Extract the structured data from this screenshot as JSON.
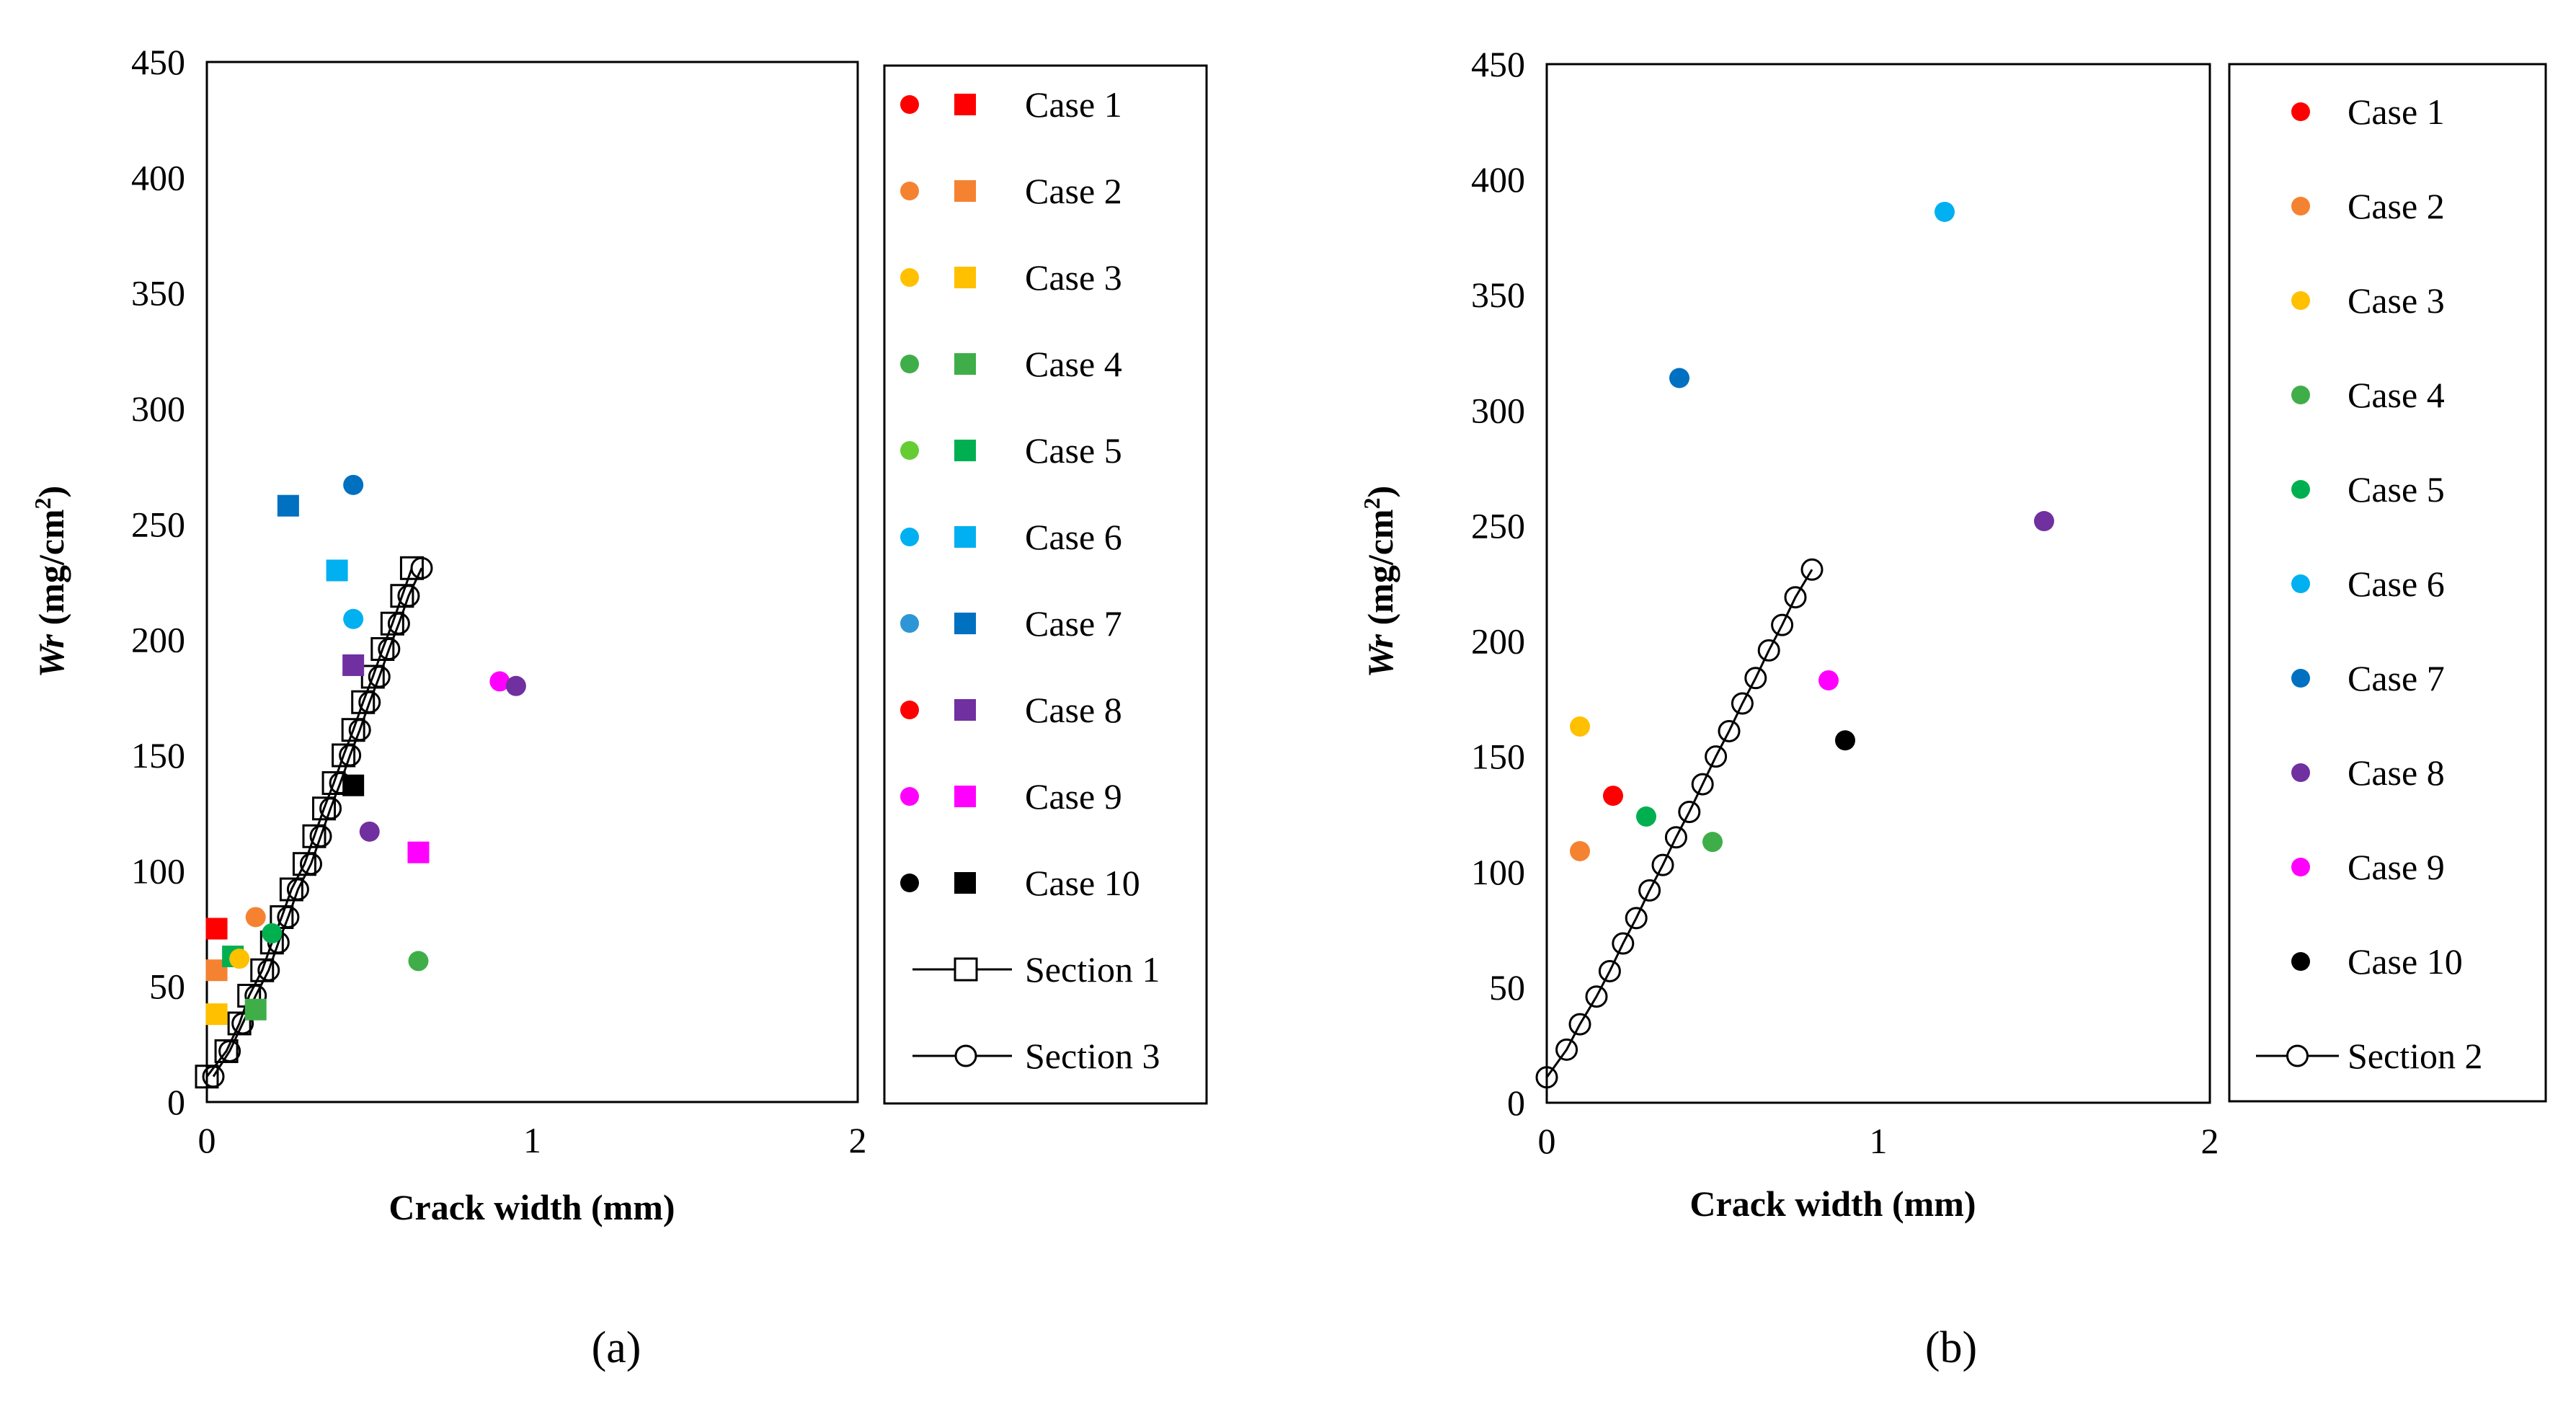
{
  "colors": {
    "case1": "#ff0000",
    "case2": "#f58231",
    "case3": "#ffc000",
    "case4": "#3fae49",
    "case5": "#00b050",
    "case6": "#00b0f0",
    "case7": "#0070c0",
    "case8": "#7030a0",
    "case9": "#ff00ff",
    "case10": "#000000",
    "circle4_left": "#66cc33",
    "circle7_left": "#2e96d6",
    "circle8_left": "#ff0000",
    "axis": "#000000",
    "hollow": "#ffffff"
  },
  "chart_data": [
    {
      "type": "scatter",
      "panel_label": "(a)",
      "xlabel": "Crack width (mm)",
      "ylabel_main": "Wr",
      "ylabel_unit": " (mg/cm",
      "ylabel_sup": "2",
      "ylabel_close": ")",
      "xlim": [
        0,
        2
      ],
      "ylim": [
        0,
        450
      ],
      "xticks": [
        "0",
        "1",
        "2"
      ],
      "yticks": [
        "0",
        "50",
        "100",
        "150",
        "200",
        "250",
        "300",
        "350",
        "400",
        "450"
      ],
      "legend": [
        {
          "label": "Case 1",
          "circle_color": "#ff0000",
          "square_color": "#ff0000"
        },
        {
          "label": "Case 2",
          "circle_color": "#f58231",
          "square_color": "#f58231"
        },
        {
          "label": "Case 3",
          "circle_color": "#ffc000",
          "square_color": "#ffc000"
        },
        {
          "label": "Case 4",
          "circle_color": "#3fae49",
          "square_color": "#3fae49"
        },
        {
          "label": "Case 5",
          "circle_color": "#66cc33",
          "square_color": "#00b050"
        },
        {
          "label": "Case 6",
          "circle_color": "#00b0f0",
          "square_color": "#00b0f0"
        },
        {
          "label": "Case 7",
          "circle_color": "#2e96d6",
          "square_color": "#0070c0"
        },
        {
          "label": "Case 8",
          "circle_color": "#ff0000",
          "square_color": "#7030a0"
        },
        {
          "label": "Case 9",
          "circle_color": "#ff00ff",
          "square_color": "#ff00ff"
        },
        {
          "label": "Case 10",
          "circle_color": "#000000",
          "square_color": "#000000"
        },
        {
          "label": "Section 1",
          "marker": "square-open-line"
        },
        {
          "label": "Section 3",
          "marker": "circle-open-line"
        }
      ],
      "section_1": {
        "marker": "square-open",
        "x": [
          0.0,
          0.06,
          0.1,
          0.13,
          0.17,
          0.2,
          0.23,
          0.26,
          0.3,
          0.33,
          0.36,
          0.39,
          0.42,
          0.45,
          0.48,
          0.51,
          0.54,
          0.57,
          0.6,
          0.63
        ],
        "y": [
          11,
          22,
          34,
          46,
          57,
          69,
          80,
          92,
          103,
          115,
          127,
          138,
          150,
          161,
          173,
          184,
          196,
          207,
          219,
          231
        ]
      },
      "section_3": {
        "marker": "circle-open",
        "x": [
          0.02,
          0.07,
          0.11,
          0.15,
          0.19,
          0.22,
          0.25,
          0.28,
          0.32,
          0.35,
          0.38,
          0.41,
          0.44,
          0.47,
          0.5,
          0.53,
          0.56,
          0.59,
          0.62,
          0.66
        ],
        "y": [
          11,
          22,
          34,
          46,
          57,
          69,
          80,
          92,
          103,
          115,
          127,
          138,
          150,
          161,
          173,
          184,
          196,
          207,
          219,
          231
        ]
      },
      "cases_circle": [
        {
          "case": "Case 2",
          "x": 0.15,
          "y": 80,
          "color": "#f58231"
        },
        {
          "case": "Case 3",
          "x": 0.1,
          "y": 62,
          "color": "#ffc000"
        },
        {
          "case": "Case 5",
          "x": 0.2,
          "y": 73,
          "color": "#00b050"
        },
        {
          "case": "Case 4",
          "x": 0.65,
          "y": 61,
          "color": "#3fae49"
        },
        {
          "case": "Case 8",
          "x": 0.5,
          "y": 117,
          "color": "#7030a0"
        },
        {
          "case": "Case 6",
          "x": 0.45,
          "y": 209,
          "color": "#00b0f0"
        },
        {
          "case": "Case 7",
          "x": 0.45,
          "y": 267,
          "color": "#0070c0"
        },
        {
          "case": "Case 9",
          "x": 0.9,
          "y": 182,
          "color": "#ff00ff"
        },
        {
          "case": "Case 8",
          "x": 0.95,
          "y": 180,
          "color": "#7030a0"
        }
      ],
      "cases_square": [
        {
          "case": "Case 1",
          "x": 0.03,
          "y": 75,
          "color": "#ff0000"
        },
        {
          "case": "Case 2",
          "x": 0.03,
          "y": 57,
          "color": "#f58231"
        },
        {
          "case": "Case 3",
          "x": 0.03,
          "y": 38,
          "color": "#ffc000"
        },
        {
          "case": "Case 4",
          "x": 0.15,
          "y": 40,
          "color": "#3fae49"
        },
        {
          "case": "Case 5",
          "x": 0.08,
          "y": 63,
          "color": "#00b050"
        },
        {
          "case": "Case 6",
          "x": 0.4,
          "y": 230,
          "color": "#00b0f0"
        },
        {
          "case": "Case 7",
          "x": 0.25,
          "y": 258,
          "color": "#0070c0"
        },
        {
          "case": "Case 8",
          "x": 0.45,
          "y": 189,
          "color": "#7030a0"
        },
        {
          "case": "Case 9",
          "x": 0.65,
          "y": 108,
          "color": "#ff00ff"
        },
        {
          "case": "Case 10",
          "x": 0.45,
          "y": 137,
          "color": "#000000"
        }
      ]
    },
    {
      "type": "scatter",
      "panel_label": "(b)",
      "xlabel": "Crack width (mm)",
      "ylabel_main": "Wr",
      "ylabel_unit": " (mg/cm",
      "ylabel_sup": "2",
      "ylabel_close": ")",
      "xlim": [
        0,
        2
      ],
      "ylim": [
        0,
        450
      ],
      "xticks": [
        "0",
        "1",
        "2"
      ],
      "yticks": [
        "0",
        "50",
        "100",
        "150",
        "200",
        "250",
        "300",
        "350",
        "400",
        "450"
      ],
      "legend": [
        {
          "label": "Case 1",
          "circle_color": "#ff0000"
        },
        {
          "label": "Case 2",
          "circle_color": "#f58231"
        },
        {
          "label": "Case 3",
          "circle_color": "#ffc000"
        },
        {
          "label": "Case 4",
          "circle_color": "#3fae49"
        },
        {
          "label": "Case 5",
          "circle_color": "#00b050"
        },
        {
          "label": "Case 6",
          "circle_color": "#00b0f0"
        },
        {
          "label": "Case 7",
          "circle_color": "#0070c0"
        },
        {
          "label": "Case 8",
          "circle_color": "#7030a0"
        },
        {
          "label": "Case 9",
          "circle_color": "#ff00ff"
        },
        {
          "label": "Case 10",
          "circle_color": "#000000"
        },
        {
          "label": "Section 2",
          "marker": "circle-open-line"
        }
      ],
      "section_2": {
        "marker": "circle-open",
        "x": [
          0.0,
          0.06,
          0.1,
          0.15,
          0.19,
          0.23,
          0.27,
          0.31,
          0.35,
          0.39,
          0.43,
          0.47,
          0.51,
          0.55,
          0.59,
          0.63,
          0.67,
          0.71,
          0.75,
          0.8
        ],
        "y": [
          11,
          23,
          34,
          46,
          57,
          69,
          80,
          92,
          103,
          115,
          126,
          138,
          150,
          161,
          173,
          184,
          196,
          207,
          219,
          231
        ]
      },
      "cases_circle": [
        {
          "case": "Case 1",
          "x": 0.2,
          "y": 133,
          "color": "#ff0000"
        },
        {
          "case": "Case 2",
          "x": 0.1,
          "y": 109,
          "color": "#f58231"
        },
        {
          "case": "Case 3",
          "x": 0.1,
          "y": 163,
          "color": "#ffc000"
        },
        {
          "case": "Case 4",
          "x": 0.5,
          "y": 113,
          "color": "#3fae49"
        },
        {
          "case": "Case 5",
          "x": 0.3,
          "y": 124,
          "color": "#00b050"
        },
        {
          "case": "Case 6",
          "x": 1.2,
          "y": 386,
          "color": "#00b0f0"
        },
        {
          "case": "Case 7",
          "x": 0.4,
          "y": 314,
          "color": "#0070c0"
        },
        {
          "case": "Case 8",
          "x": 1.5,
          "y": 252,
          "color": "#7030a0"
        },
        {
          "case": "Case 9",
          "x": 0.85,
          "y": 183,
          "color": "#ff00ff"
        },
        {
          "case": "Case 10",
          "x": 0.9,
          "y": 157,
          "color": "#000000"
        }
      ]
    }
  ]
}
